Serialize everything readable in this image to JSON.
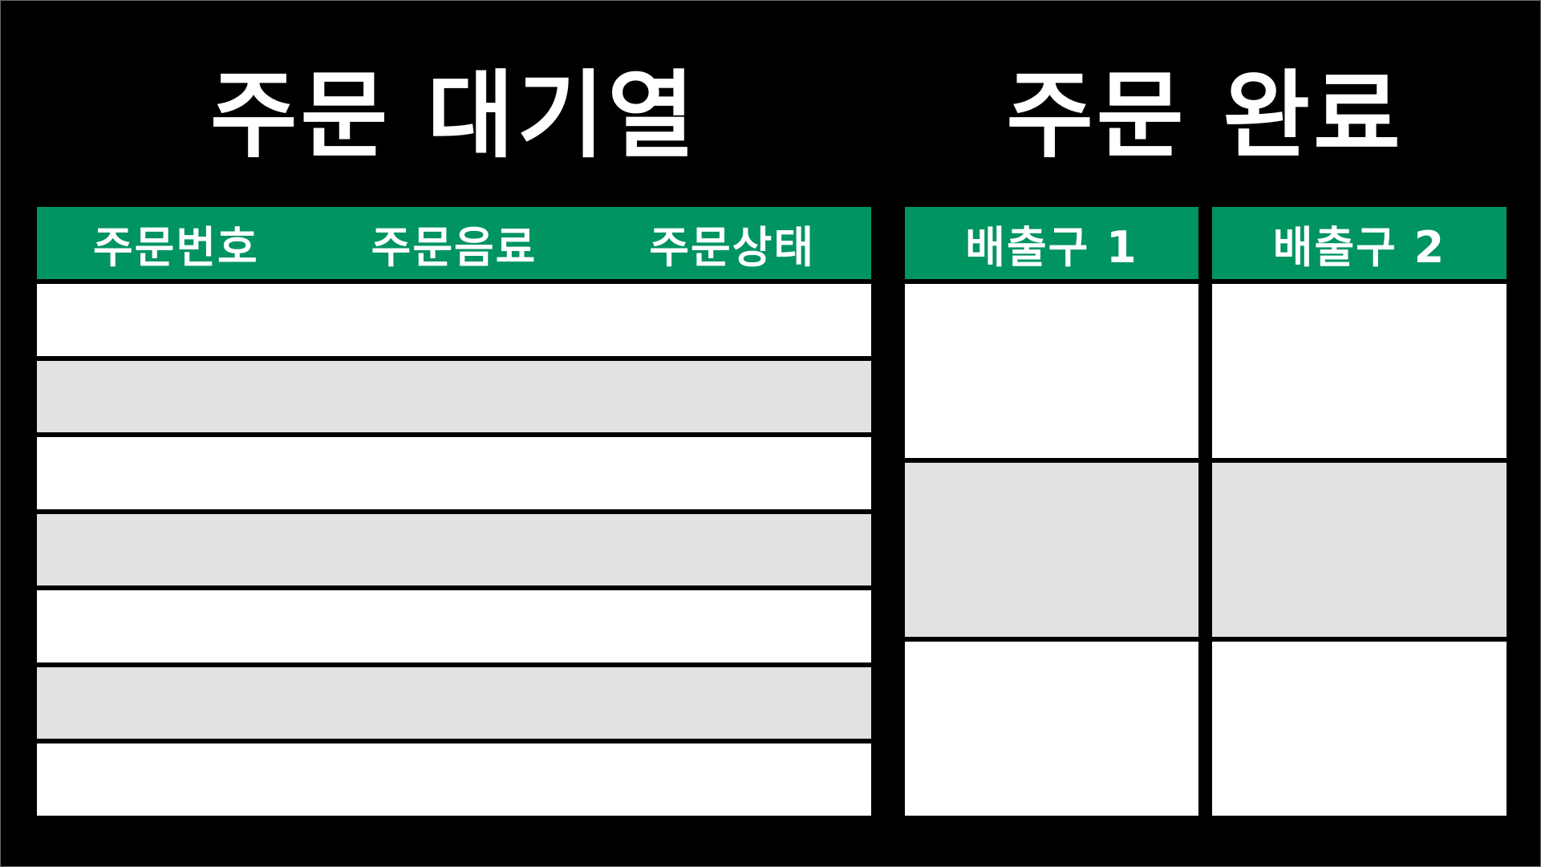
{
  "colors": {
    "background": "#000000",
    "accent": "#009460",
    "row_white": "#ffffff",
    "row_gray": "#e2e2e2"
  },
  "queue": {
    "title": "주문 대기열",
    "columns": [
      "주문번호",
      "주문음료",
      "주문상태"
    ],
    "rows": [
      [
        "",
        "",
        ""
      ],
      [
        "",
        "",
        ""
      ],
      [
        "",
        "",
        ""
      ],
      [
        "",
        "",
        ""
      ],
      [
        "",
        "",
        ""
      ],
      [
        "",
        "",
        ""
      ],
      [
        "",
        "",
        ""
      ]
    ]
  },
  "completed": {
    "title": "주문 완료",
    "outlets": [
      {
        "label": "배출구 1",
        "slots": [
          "",
          "",
          ""
        ]
      },
      {
        "label": "배출구 2",
        "slots": [
          "",
          "",
          ""
        ]
      }
    ]
  }
}
